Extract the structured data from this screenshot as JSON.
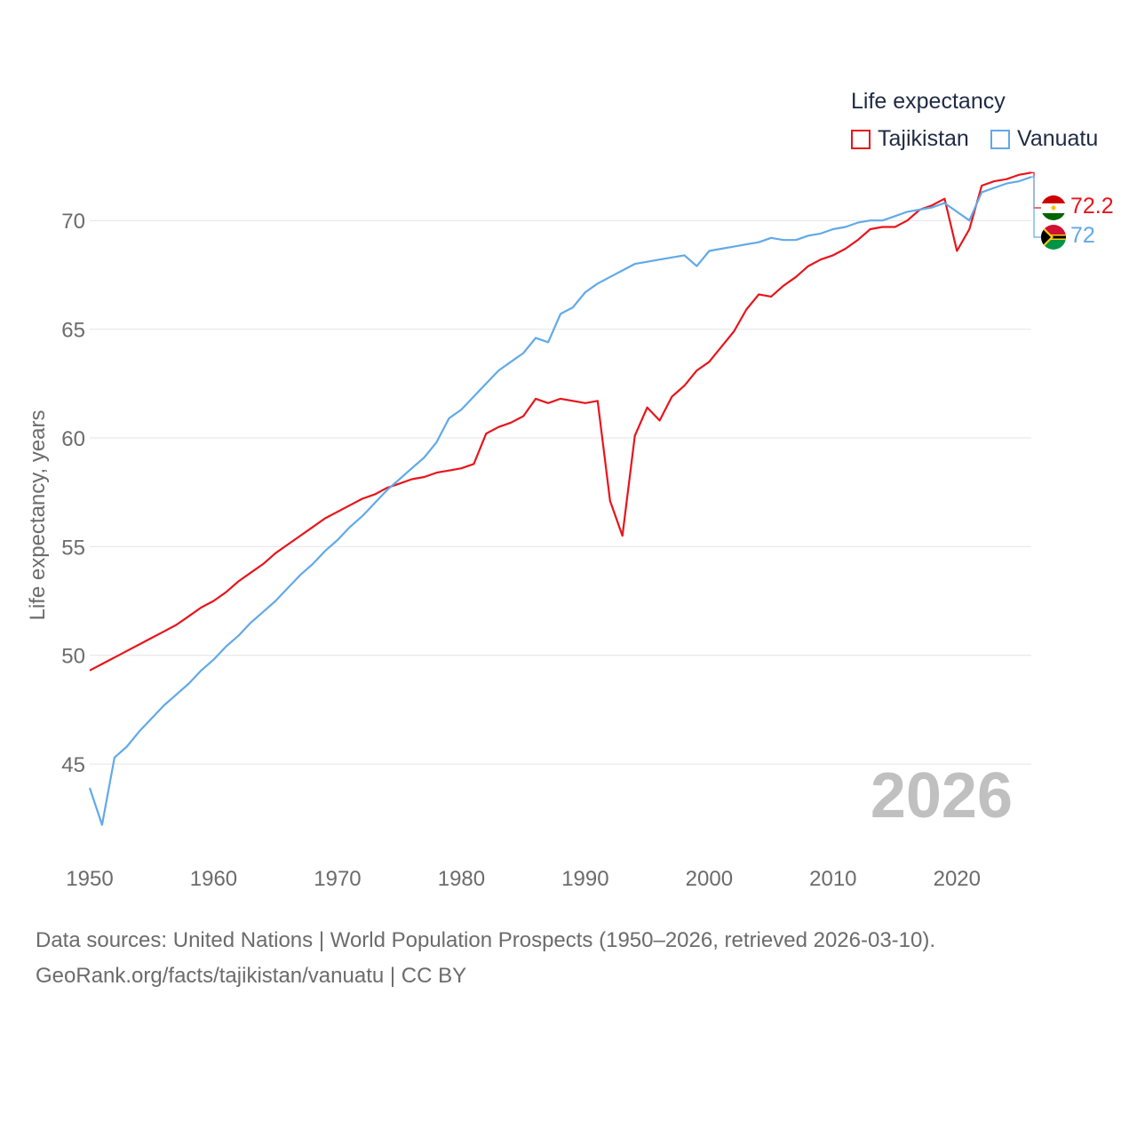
{
  "chart_data": {
    "type": "line",
    "legend_title": "Life expectancy",
    "ylabel": "Life expectancy, years",
    "xlim": [
      1950,
      2026
    ],
    "ylim": [
      41,
      72.5
    ],
    "y_ticks": [
      45,
      50,
      55,
      60,
      65,
      70
    ],
    "x_ticks": [
      1950,
      1960,
      1970,
      1980,
      1990,
      2000,
      2010,
      2020
    ],
    "current_year": "2026",
    "series": [
      {
        "name": "Tajikistan",
        "color": "#e8141b",
        "end_label": "72.2",
        "x": [
          1950,
          1951,
          1952,
          1953,
          1954,
          1955,
          1956,
          1957,
          1958,
          1959,
          1960,
          1961,
          1962,
          1963,
          1964,
          1965,
          1966,
          1967,
          1968,
          1969,
          1970,
          1971,
          1972,
          1973,
          1974,
          1975,
          1976,
          1977,
          1978,
          1979,
          1980,
          1981,
          1982,
          1983,
          1984,
          1985,
          1986,
          1987,
          1988,
          1989,
          1990,
          1991,
          1992,
          1993,
          1994,
          1995,
          1996,
          1997,
          1998,
          1999,
          2000,
          2001,
          2002,
          2003,
          2004,
          2005,
          2006,
          2007,
          2008,
          2009,
          2010,
          2011,
          2012,
          2013,
          2014,
          2015,
          2016,
          2017,
          2018,
          2019,
          2020,
          2021,
          2022,
          2023,
          2024,
          2025,
          2026
        ],
        "values": [
          49.3,
          49.6,
          49.9,
          50.2,
          50.5,
          50.8,
          51.1,
          51.4,
          51.8,
          52.2,
          52.5,
          52.9,
          53.4,
          53.8,
          54.2,
          54.7,
          55.1,
          55.5,
          55.9,
          56.3,
          56.6,
          56.9,
          57.2,
          57.4,
          57.7,
          57.9,
          58.1,
          58.2,
          58.4,
          58.5,
          58.6,
          58.8,
          60.2,
          60.5,
          60.7,
          61.0,
          61.8,
          61.6,
          61.8,
          61.7,
          61.6,
          61.7,
          57.1,
          55.5,
          60.1,
          61.4,
          60.8,
          61.9,
          62.4,
          63.1,
          63.5,
          64.2,
          64.9,
          65.9,
          66.6,
          66.5,
          67.0,
          67.4,
          67.9,
          68.2,
          68.4,
          68.7,
          69.1,
          69.6,
          69.7,
          69.7,
          70.0,
          70.5,
          70.7,
          71.0,
          68.6,
          69.6,
          71.6,
          71.8,
          71.9,
          72.1,
          72.2
        ]
      },
      {
        "name": "Vanuatu",
        "color": "#61a9e8",
        "end_label": "72",
        "x": [
          1950,
          1951,
          1952,
          1953,
          1954,
          1955,
          1956,
          1957,
          1958,
          1959,
          1960,
          1961,
          1962,
          1963,
          1964,
          1965,
          1966,
          1967,
          1968,
          1969,
          1970,
          1971,
          1972,
          1973,
          1974,
          1975,
          1976,
          1977,
          1978,
          1979,
          1980,
          1981,
          1982,
          1983,
          1984,
          1985,
          1986,
          1987,
          1988,
          1989,
          1990,
          1991,
          1992,
          1993,
          1994,
          1995,
          1996,
          1997,
          1998,
          1999,
          2000,
          2001,
          2002,
          2003,
          2004,
          2005,
          2006,
          2007,
          2008,
          2009,
          2010,
          2011,
          2012,
          2013,
          2014,
          2015,
          2016,
          2017,
          2018,
          2019,
          2020,
          2021,
          2022,
          2023,
          2024,
          2025,
          2026
        ],
        "values": [
          43.9,
          42.2,
          45.3,
          45.8,
          46.5,
          47.1,
          47.7,
          48.2,
          48.7,
          49.3,
          49.8,
          50.4,
          50.9,
          51.5,
          52.0,
          52.5,
          53.1,
          53.7,
          54.2,
          54.8,
          55.3,
          55.9,
          56.4,
          57.0,
          57.6,
          58.1,
          58.6,
          59.1,
          59.8,
          60.9,
          61.3,
          61.9,
          62.5,
          63.1,
          63.5,
          63.9,
          64.6,
          64.4,
          65.7,
          66.0,
          66.7,
          67.1,
          67.4,
          67.7,
          68.0,
          68.1,
          68.2,
          68.3,
          68.4,
          67.9,
          68.6,
          68.7,
          68.8,
          68.9,
          69.0,
          69.2,
          69.1,
          69.1,
          69.3,
          69.4,
          69.6,
          69.7,
          69.9,
          70.0,
          70.0,
          70.2,
          70.4,
          70.5,
          70.6,
          70.8,
          70.4,
          70.0,
          71.3,
          71.5,
          71.7,
          71.8,
          72.0
        ]
      }
    ]
  },
  "footer": {
    "line1": "Data sources: United Nations | World Population Prospects (1950–2026, retrieved 2026-03-10).",
    "line2": "GeoRank.org/facts/tajikistan/vanuatu | CC BY"
  }
}
